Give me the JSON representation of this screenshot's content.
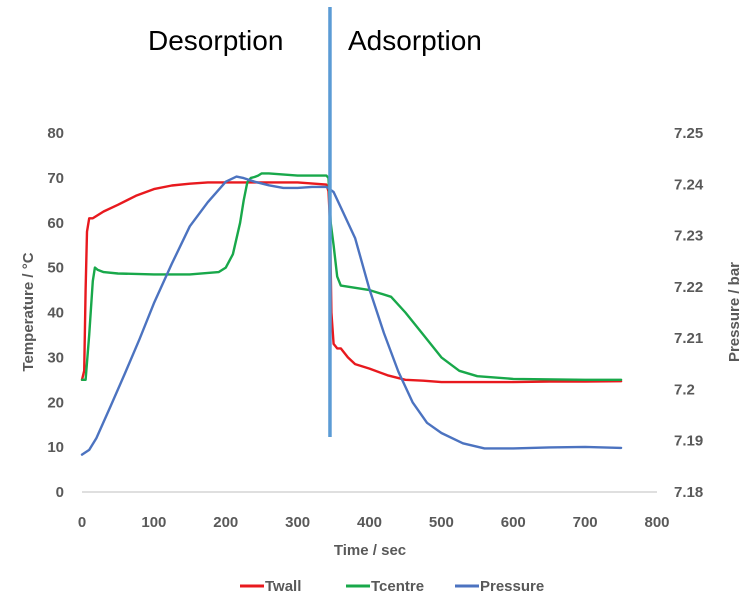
{
  "chart_data": {
    "type": "line",
    "xlabel": "Time / sec",
    "ylabel": "Temperature / °C",
    "y2label": "Pressure / bar",
    "xlim": [
      0,
      800
    ],
    "ylim": [
      0,
      80
    ],
    "y2lim": [
      7.18,
      7.25
    ],
    "x_ticks": [
      "0",
      "100",
      "200",
      "300",
      "400",
      "500",
      "600",
      "700",
      "800"
    ],
    "y_ticks": [
      "0",
      "10",
      "20",
      "30",
      "40",
      "50",
      "60",
      "70",
      "80"
    ],
    "y2_ticks": [
      "7.18",
      "7.19",
      "7.2",
      "7.21",
      "7.22",
      "7.23",
      "7.24",
      "7.25"
    ],
    "grid": false,
    "legend": "bottom",
    "annotations": {
      "left_phase": "Desorption",
      "right_phase": "Adsorption",
      "divider_x": 345
    },
    "series": [
      {
        "name": "Twall",
        "axis": "left",
        "color": "#e8191e",
        "x": [
          0,
          3,
          5,
          7,
          10,
          15,
          20,
          30,
          50,
          75,
          100,
          125,
          150,
          175,
          200,
          250,
          300,
          340,
          343,
          345,
          347,
          350,
          355,
          360,
          370,
          380,
          400,
          425,
          450,
          475,
          500,
          550,
          600,
          650,
          700,
          750
        ],
        "y": [
          25,
          27,
          45,
          58,
          61,
          61,
          61.5,
          62.5,
          64,
          66,
          67.5,
          68.3,
          68.7,
          69,
          69,
          69,
          69,
          68.5,
          67,
          60,
          40,
          33,
          32,
          32,
          30,
          28.5,
          27.5,
          26,
          25,
          24.8,
          24.5,
          24.5,
          24.5,
          24.6,
          24.6,
          24.7
        ]
      },
      {
        "name": "Tcentre",
        "axis": "left",
        "color": "#18a84a",
        "x": [
          0,
          5,
          10,
          15,
          18,
          22,
          30,
          50,
          100,
          150,
          190,
          200,
          210,
          220,
          225,
          230,
          235,
          240,
          245,
          250,
          260,
          300,
          340,
          343,
          346,
          350,
          355,
          360,
          400,
          430,
          450,
          475,
          500,
          525,
          550,
          600,
          700,
          750
        ],
        "y": [
          25,
          25,
          35,
          47,
          50,
          49.5,
          49,
          48.7,
          48.5,
          48.5,
          49,
          50,
          53,
          60,
          65,
          69,
          70,
          70.2,
          70.5,
          71,
          71,
          70.5,
          70.5,
          70,
          60,
          55,
          48,
          46,
          45,
          43.5,
          40,
          35,
          30,
          27,
          25.8,
          25.2,
          25,
          25
        ]
      },
      {
        "name": "Pressure",
        "axis": "right",
        "color": "#4c73c0",
        "x": [
          0,
          10,
          20,
          40,
          60,
          80,
          100,
          125,
          150,
          175,
          200,
          215,
          225,
          240,
          260,
          280,
          300,
          320,
          340,
          350,
          360,
          380,
          400,
          420,
          440,
          460,
          480,
          500,
          530,
          560,
          600,
          650,
          700,
          750
        ],
        "y": [
          7.1873,
          7.1882,
          7.1905,
          7.1968,
          7.2032,
          7.2098,
          7.2168,
          7.2245,
          7.2318,
          7.2365,
          7.2405,
          7.2415,
          7.2412,
          7.2405,
          7.2398,
          7.2393,
          7.2393,
          7.2395,
          7.2395,
          7.2385,
          7.2355,
          7.2295,
          7.2195,
          7.211,
          7.2035,
          7.1975,
          7.1935,
          7.1915,
          7.1895,
          7.1885,
          7.1885,
          7.1887,
          7.1888,
          7.1886
        ]
      }
    ]
  }
}
